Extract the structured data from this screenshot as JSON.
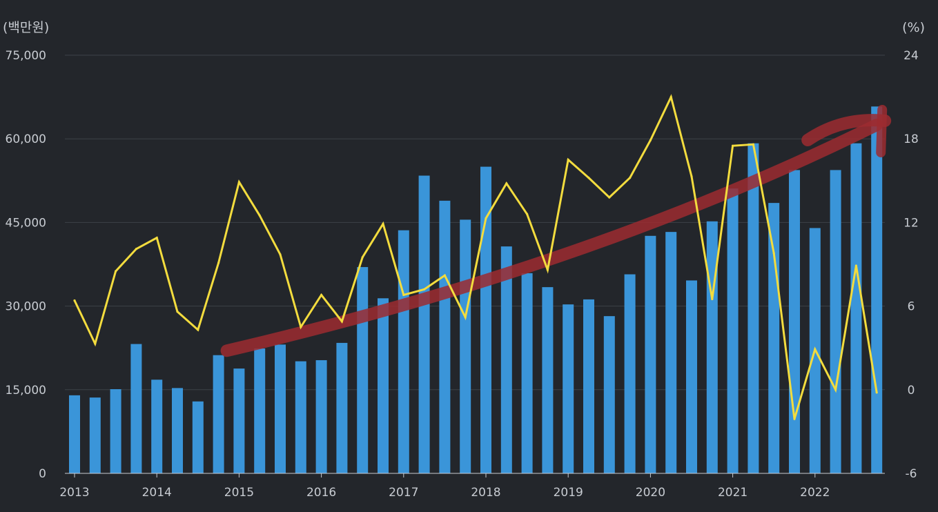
{
  "chart_data": {
    "type": "bar+line",
    "title": "",
    "left_unit": "(백만원)",
    "right_unit": "(%)",
    "y_left": {
      "min": 0,
      "max": 75000,
      "ticks": [
        "75,000",
        "60,000",
        "45,000",
        "30,000",
        "15,000",
        "0"
      ],
      "tick_values": [
        75000,
        60000,
        45000,
        30000,
        15000,
        0
      ]
    },
    "y_right": {
      "min": -6,
      "max": 24,
      "ticks": [
        "24",
        "18",
        "12",
        "6",
        "0",
        "-6"
      ],
      "tick_values": [
        24,
        18,
        12,
        6,
        0,
        -6
      ]
    },
    "x_ticks": [
      "2013",
      "2014",
      "2015",
      "2016",
      "2017",
      "2018",
      "2019",
      "2020",
      "2021",
      "2022"
    ],
    "grid": true,
    "colors": {
      "bar": "#3a95d9",
      "line": "#f3dc3e",
      "trend": "#9c2b30",
      "grid": "#3d4249",
      "text": "#c8ccd2",
      "background": "#23262b"
    },
    "quarters_start": "2013 Q1",
    "series": [
      {
        "type": "bar",
        "axis": "left",
        "values": [
          14000,
          13600,
          15100,
          23200,
          16800,
          15300,
          12900,
          21200,
          18800,
          22400,
          23100,
          20100,
          20300,
          23400,
          37000,
          31400,
          43600,
          53400,
          48900,
          45500,
          55000,
          40700,
          35900,
          33400,
          30300,
          31200,
          28200,
          35700,
          42600,
          43300,
          34600,
          45200,
          51100,
          59200,
          48500,
          54400,
          44000,
          54400,
          59200,
          65800
        ]
      },
      {
        "type": "line",
        "axis": "right",
        "values": [
          6.4,
          3.3,
          8.5,
          10.1,
          10.9,
          5.6,
          4.3,
          9.1,
          14.9,
          12.5,
          9.7,
          4.5,
          6.8,
          4.9,
          9.5,
          11.9,
          6.8,
          7.2,
          8.2,
          5.2,
          12.3,
          14.8,
          12.6,
          8.6,
          16.5,
          15.2,
          13.8,
          15.2,
          17.9,
          21.0,
          15.3,
          6.5,
          17.5,
          17.6,
          9.8,
          -2.1,
          2.9,
          0.0,
          8.9,
          -0.2
        ]
      }
    ],
    "annotations": [
      {
        "type": "hand-drawn-trend-arrow",
        "color": "#9c2b30",
        "from": {
          "quarter": 7,
          "value": 22000
        },
        "to": {
          "quarter": 39,
          "value": 62500
        }
      }
    ]
  }
}
